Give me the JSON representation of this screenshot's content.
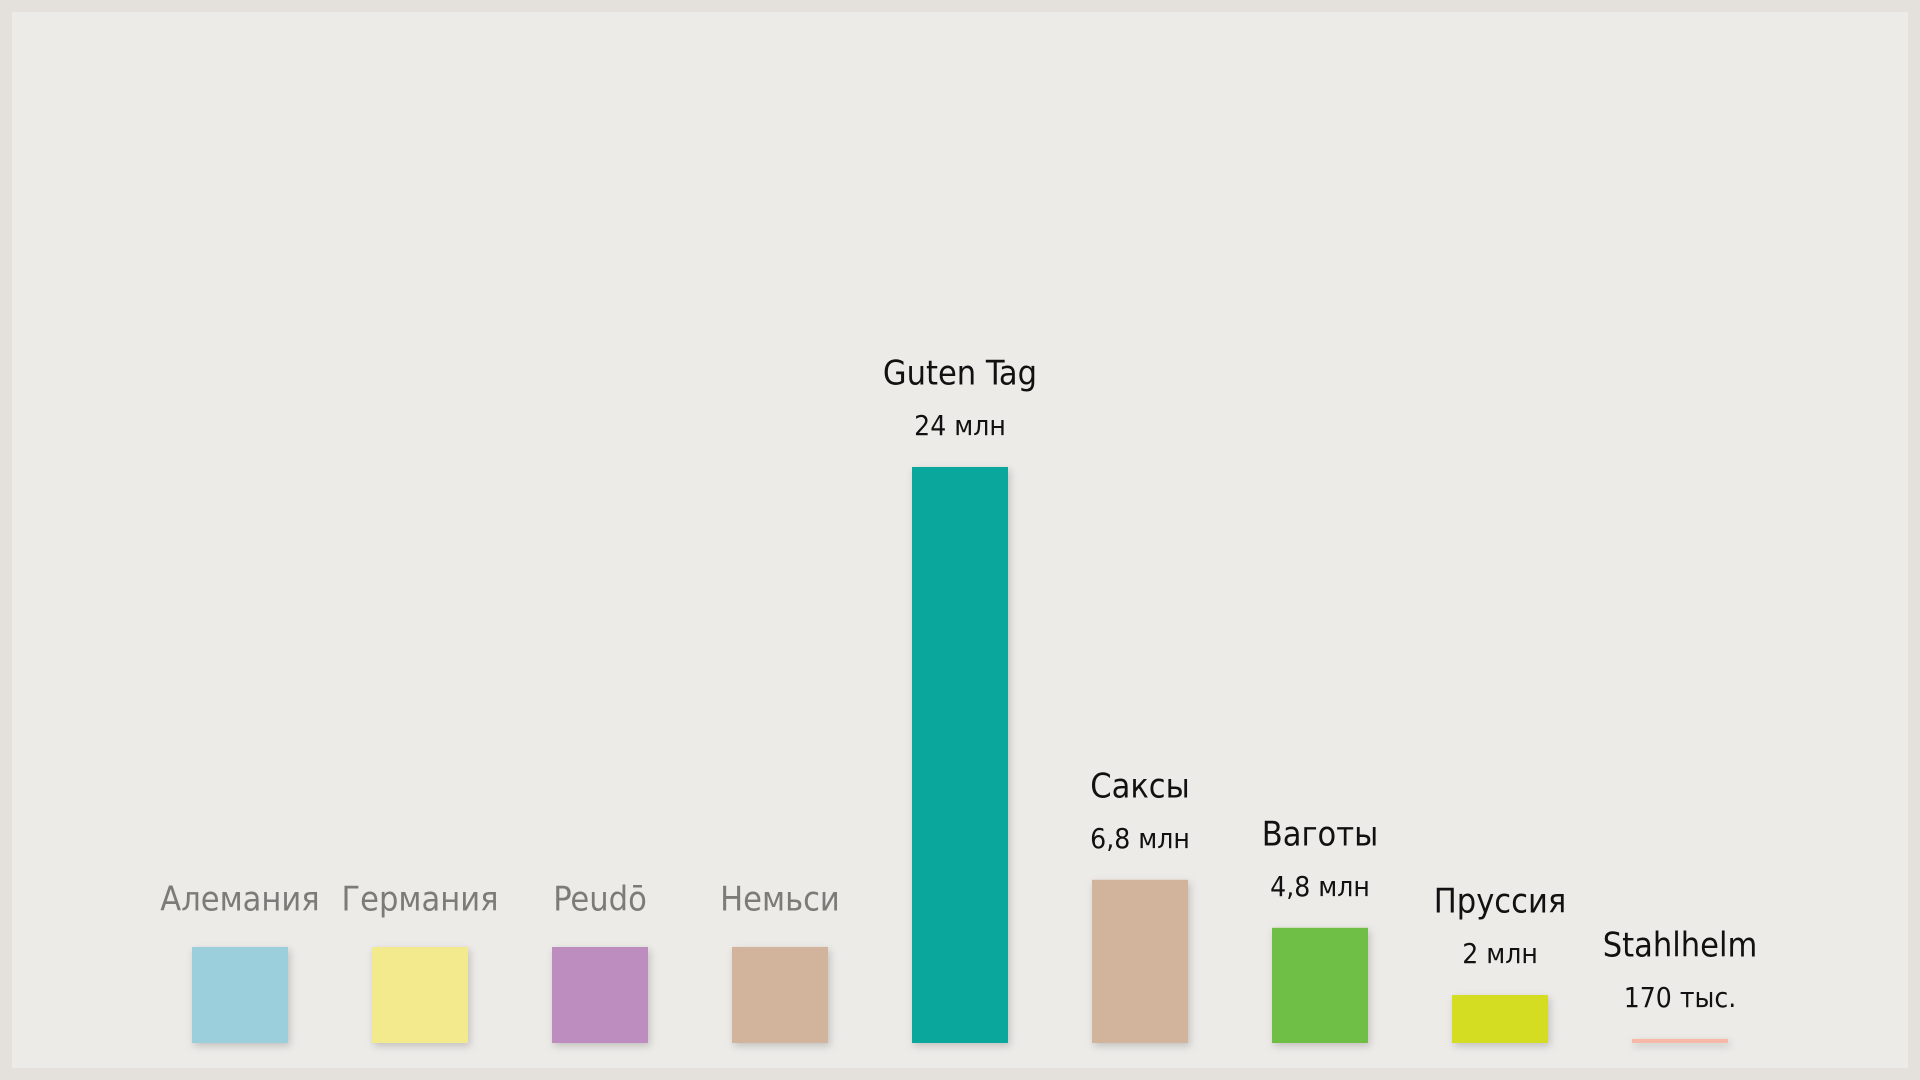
{
  "chart_data": {
    "type": "bar",
    "categories": [
      "Алемания",
      "Германия",
      "Peudō",
      "Немьси",
      "Guten Tag",
      "Саксы",
      "Ваготы",
      "Пруссия",
      "Stahlhelm"
    ],
    "values": [
      null,
      null,
      null,
      null,
      24,
      6.8,
      4.8,
      2,
      0.17
    ],
    "value_labels": [
      null,
      null,
      null,
      null,
      "24 млн",
      "6,8 млн",
      "4,8 млн",
      "2 млн",
      "170 тыс."
    ],
    "colors": [
      "#9ccfdc",
      "#f2ea8c",
      "#bd8dbf",
      "#d2b39b",
      "#0aa79d",
      "#d2b39b",
      "#6fbe45",
      "#d5dd22",
      "#f6b9a7"
    ]
  }
}
